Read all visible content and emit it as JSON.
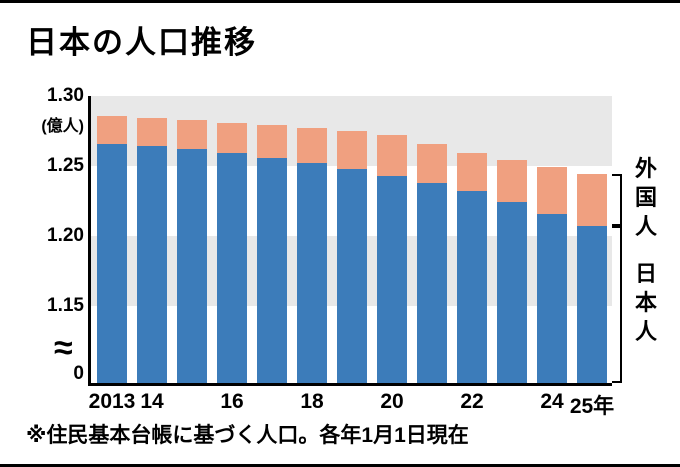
{
  "title": "日本の人口推移",
  "footnote": "※住民基本台帳に基づく人口。各年1月1日現在",
  "colors": {
    "japanese_bar": "#3c7cba",
    "foreign_bar": "#f0a080",
    "band": "#e8e8e8",
    "axis": "#000000"
  },
  "y_axis": {
    "unit_label": "(億人)",
    "zero_label": "0",
    "break_symbol": "≈",
    "ticks": [
      {
        "value": 1.3,
        "label": "1.30"
      },
      {
        "value": 1.25,
        "label": "1.25"
      },
      {
        "value": 1.2,
        "label": "1.20"
      },
      {
        "value": 1.15,
        "label": "1.15"
      }
    ]
  },
  "right_labels": {
    "foreign": "外国人",
    "japanese": "日本人"
  },
  "chart_data": {
    "type": "bar",
    "stacked": true,
    "title": "日本の人口推移",
    "ylabel": "(億人)",
    "note": "住民基本台帳に基づく人口。各年1月1日現在",
    "categories": [
      "2013",
      "2014",
      "2015",
      "2016",
      "2017",
      "2018",
      "2019",
      "2020",
      "2021",
      "2022",
      "2023",
      "2024",
      "2025"
    ],
    "x_tick_labels": [
      "2013",
      "14",
      "",
      "16",
      "",
      "18",
      "",
      "20",
      "",
      "22",
      "",
      "24",
      "25年"
    ],
    "series": [
      {
        "name": "日本人",
        "color": "#3c7cba",
        "values": [
          1.266,
          1.264,
          1.262,
          1.259,
          1.256,
          1.252,
          1.248,
          1.243,
          1.238,
          1.232,
          1.224,
          1.216,
          1.207
        ]
      },
      {
        "name": "外国人",
        "color": "#f0a080",
        "values": [
          0.02,
          0.02,
          0.021,
          0.022,
          0.023,
          0.025,
          0.027,
          0.029,
          0.028,
          0.027,
          0.03,
          0.033,
          0.037
        ]
      }
    ],
    "ylim_display": [
      1.15,
      1.3
    ],
    "axis_break": true,
    "legend_position": "right"
  }
}
